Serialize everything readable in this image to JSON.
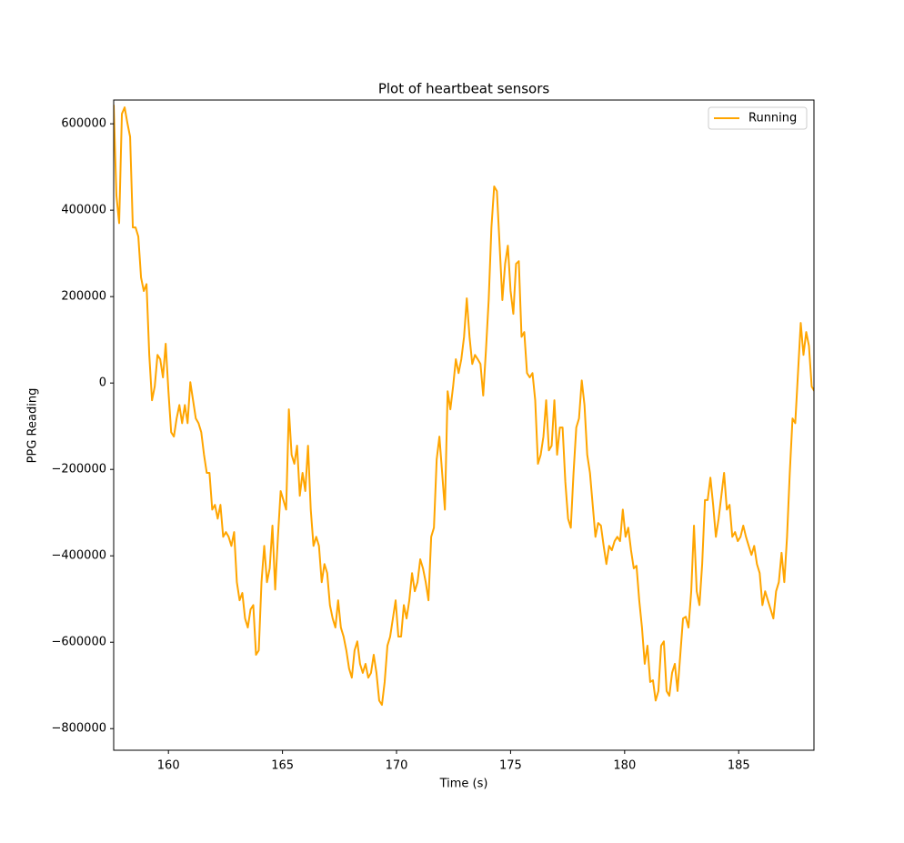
{
  "chart_data": {
    "type": "line",
    "title": "Plot of heartbeat sensors",
    "xlabel": "Time (s)",
    "ylabel": "PPG Reading",
    "legend": "upper right",
    "xlim": [
      157.6,
      188.3
    ],
    "ylim": [
      -850000,
      655000
    ],
    "xticks": [
      160,
      165,
      170,
      175,
      180,
      185
    ],
    "yticks": [
      {
        "value": -800000,
        "label": "−800000"
      },
      {
        "value": -600000,
        "label": "−600000"
      },
      {
        "value": -400000,
        "label": "−400000"
      },
      {
        "value": -200000,
        "label": "−200000"
      },
      0,
      200000,
      400000,
      600000
    ],
    "x": [
      157.6,
      157.72,
      157.84,
      157.96,
      158.08,
      158.2,
      158.32,
      158.44,
      158.56,
      158.68,
      158.8,
      158.92,
      159.04,
      159.16,
      159.28,
      159.4,
      159.52,
      159.64,
      159.76,
      159.88,
      160,
      160.12,
      160.24,
      160.36,
      160.48,
      160.6,
      160.72,
      160.84,
      160.96,
      161.08,
      161.2,
      161.32,
      161.44,
      161.56,
      161.68,
      161.8,
      161.92,
      162.04,
      162.16,
      162.28,
      162.4,
      162.52,
      162.64,
      162.76,
      162.88,
      163,
      163.12,
      163.24,
      163.36,
      163.48,
      163.6,
      163.72,
      163.84,
      163.96,
      164.08,
      164.2,
      164.32,
      164.44,
      164.56,
      164.68,
      164.8,
      164.92,
      165.04,
      165.16,
      165.28,
      165.4,
      165.52,
      165.64,
      165.76,
      165.88,
      166,
      166.12,
      166.24,
      166.36,
      166.48,
      166.6,
      166.72,
      166.84,
      166.96,
      167.08,
      167.2,
      167.32,
      167.44,
      167.56,
      167.68,
      167.8,
      167.92,
      168.04,
      168.16,
      168.28,
      168.4,
      168.52,
      168.64,
      168.76,
      168.88,
      169,
      169.12,
      169.24,
      169.36,
      169.48,
      169.6,
      169.72,
      169.84,
      169.96,
      170.08,
      170.2,
      170.32,
      170.44,
      170.56,
      170.68,
      170.8,
      170.92,
      171.04,
      171.16,
      171.28,
      171.4,
      171.52,
      171.64,
      171.76,
      171.88,
      172,
      172.12,
      172.24,
      172.36,
      172.48,
      172.6,
      172.72,
      172.84,
      172.96,
      173.08,
      173.2,
      173.32,
      173.44,
      173.56,
      173.68,
      173.8,
      173.92,
      174.04,
      174.16,
      174.28,
      174.4,
      174.52,
      174.64,
      174.76,
      174.88,
      175,
      175.12,
      175.24,
      175.36,
      175.48,
      175.6,
      175.72,
      175.84,
      175.96,
      176.08,
      176.2,
      176.32,
      176.44,
      176.56,
      176.68,
      176.8,
      176.92,
      177.04,
      177.16,
      177.28,
      177.4,
      177.52,
      177.64,
      177.76,
      177.88,
      178,
      178.12,
      178.24,
      178.36,
      178.48,
      178.6,
      178.72,
      178.84,
      178.96,
      179.08,
      179.2,
      179.32,
      179.44,
      179.56,
      179.68,
      179.8,
      179.92,
      180.04,
      180.16,
      180.28,
      180.4,
      180.52,
      180.64,
      180.76,
      180.88,
      181,
      181.12,
      181.24,
      181.36,
      181.48,
      181.6,
      181.72,
      181.84,
      181.96,
      182.08,
      182.2,
      182.32,
      182.44,
      182.56,
      182.68,
      182.8,
      182.92,
      183.04,
      183.16,
      183.28,
      183.4,
      183.52,
      183.64,
      183.76,
      183.88,
      184,
      184.12,
      184.24,
      184.36,
      184.48,
      184.6,
      184.72,
      184.84,
      184.96,
      185.08,
      185.2,
      185.32,
      185.44,
      185.56,
      185.68,
      185.8,
      185.92,
      186.04,
      186.16,
      186.28,
      186.4,
      186.52,
      186.64,
      186.76,
      186.88,
      187,
      187.12,
      187.24,
      187.36,
      187.48,
      187.6,
      187.72,
      187.84,
      187.96,
      188.08,
      188.2,
      188.32
    ],
    "series": [
      {
        "name": "Running",
        "color": "#ffa500",
        "values": [
          644000,
          434000,
          370000,
          623000,
          638000,
          602000,
          570000,
          360000,
          360000,
          339000,
          244000,
          213000,
          229000,
          65000,
          -40000,
          -8000,
          65000,
          55000,
          13000,
          91000,
          -19000,
          -114000,
          -124000,
          -82000,
          -51000,
          -93000,
          -51000,
          -93000,
          2000,
          -40000,
          -82000,
          -93000,
          -114000,
          -166000,
          -208000,
          -208000,
          -293000,
          -282000,
          -314000,
          -282000,
          -356000,
          -345000,
          -356000,
          -377000,
          -345000,
          -461000,
          -503000,
          -486000,
          -545000,
          -566000,
          -524000,
          -514000,
          -629000,
          -619000,
          -461000,
          -377000,
          -461000,
          -429000,
          -330000,
          -478000,
          -356000,
          -250000,
          -271000,
          -293000,
          -61000,
          -166000,
          -187000,
          -145000,
          -261000,
          -208000,
          -250000,
          -145000,
          -293000,
          -377000,
          -356000,
          -377000,
          -461000,
          -419000,
          -440000,
          -514000,
          -545000,
          -566000,
          -503000,
          -566000,
          -587000,
          -619000,
          -661000,
          -682000,
          -619000,
          -598000,
          -650000,
          -671000,
          -650000,
          -682000,
          -671000,
          -629000,
          -671000,
          -735000,
          -745000,
          -692000,
          -608000,
          -587000,
          -545000,
          -503000,
          -587000,
          -587000,
          -514000,
          -545000,
          -503000,
          -440000,
          -482000,
          -461000,
          -408000,
          -429000,
          -461000,
          -503000,
          -356000,
          -335000,
          -177000,
          -124000,
          -208000,
          -293000,
          -19000,
          -61000,
          -8000,
          55000,
          23000,
          55000,
          107000,
          196000,
          107000,
          44000,
          65000,
          55000,
          44000,
          -29000,
          76000,
          192000,
          360000,
          455000,
          444000,
          318000,
          192000,
          276000,
          318000,
          213000,
          160000,
          276000,
          282000,
          107000,
          118000,
          23000,
          13000,
          23000,
          -40000,
          -187000,
          -166000,
          -124000,
          -40000,
          -156000,
          -145000,
          -40000,
          -166000,
          -103000,
          -103000,
          -229000,
          -314000,
          -335000,
          -208000,
          -103000,
          -82000,
          6000,
          -51000,
          -166000,
          -208000,
          -282000,
          -356000,
          -324000,
          -330000,
          -377000,
          -419000,
          -377000,
          -387000,
          -366000,
          -356000,
          -366000,
          -293000,
          -356000,
          -335000,
          -387000,
          -429000,
          -423000,
          -503000,
          -566000,
          -650000,
          -608000,
          -692000,
          -688000,
          -735000,
          -713000,
          -608000,
          -598000,
          -713000,
          -724000,
          -671000,
          -650000,
          -713000,
          -629000,
          -545000,
          -541000,
          -566000,
          -482000,
          -330000,
          -482000,
          -514000,
          -419000,
          -271000,
          -271000,
          -219000,
          -282000,
          -356000,
          -314000,
          -261000,
          -208000,
          -293000,
          -282000,
          -356000,
          -345000,
          -366000,
          -356000,
          -330000,
          -356000,
          -377000,
          -398000,
          -377000,
          -419000,
          -440000,
          -514000,
          -482000,
          -503000,
          -524000,
          -545000,
          -482000,
          -461000,
          -393000,
          -461000,
          -356000,
          -208000,
          -82000,
          -93000,
          23000,
          139000,
          65000,
          118000,
          86000,
          -8000,
          -19000
        ]
      }
    ]
  }
}
